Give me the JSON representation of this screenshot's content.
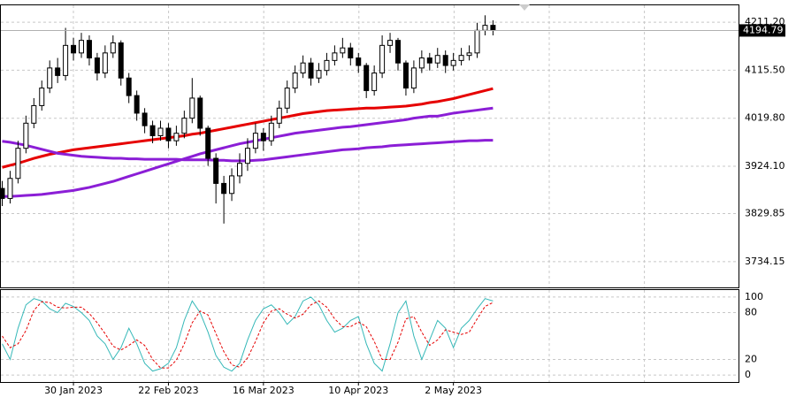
{
  "chart_data": [
    {
      "type": "candlestick",
      "open": [
        3880,
        3860,
        3900,
        3960,
        4010,
        4045,
        4080,
        4120,
        4105,
        4165,
        4150,
        4175,
        4140,
        4110,
        4150,
        4170,
        4100,
        4065,
        4030,
        4005,
        3985,
        4000,
        3975,
        3990,
        4020,
        4060,
        4000,
        3940,
        3890,
        3870,
        3905,
        3930,
        3960,
        3990,
        3975,
        4010,
        4040,
        4080,
        4110,
        4130,
        4100,
        4115,
        4135,
        4150,
        4160,
        4140,
        4125,
        4075,
        4110,
        4165,
        4175,
        4130,
        4080,
        4120,
        4140,
        4130,
        4145,
        4125,
        4135,
        4145,
        4150,
        4195,
        4205
      ],
      "high": [
        3895,
        3915,
        3975,
        4025,
        4060,
        4095,
        4135,
        4140,
        4200,
        4180,
        4190,
        4185,
        4150,
        4165,
        4185,
        4175,
        4110,
        4075,
        4040,
        4015,
        4015,
        4010,
        4005,
        4035,
        4100,
        4065,
        4005,
        3950,
        3905,
        3920,
        3950,
        3980,
        4010,
        4000,
        4025,
        4055,
        4095,
        4125,
        4145,
        4140,
        4130,
        4150,
        4165,
        4180,
        4170,
        4150,
        4130,
        4125,
        4185,
        4190,
        4180,
        4135,
        4135,
        4155,
        4150,
        4160,
        4155,
        4150,
        4160,
        4165,
        4210,
        4225,
        4215
      ],
      "low": [
        3845,
        3850,
        3890,
        3950,
        4000,
        4035,
        4070,
        4090,
        4095,
        4135,
        4140,
        4125,
        4095,
        4100,
        4140,
        4085,
        4050,
        4015,
        3990,
        3970,
        3975,
        3960,
        3965,
        3980,
        4010,
        3985,
        3925,
        3850,
        3810,
        3855,
        3890,
        3915,
        3950,
        3955,
        3965,
        4000,
        4030,
        4070,
        4100,
        4085,
        4090,
        4105,
        4125,
        4140,
        4125,
        4110,
        4060,
        4065,
        4100,
        4150,
        4115,
        4065,
        4070,
        4110,
        4115,
        4120,
        4110,
        4115,
        4125,
        4135,
        4140,
        4185,
        4185
      ],
      "close": [
        3860,
        3900,
        3960,
        4010,
        4045,
        4080,
        4120,
        4105,
        4165,
        4150,
        4175,
        4140,
        4110,
        4150,
        4170,
        4100,
        4065,
        4030,
        4005,
        3985,
        4000,
        3975,
        3990,
        4020,
        4060,
        4000,
        3940,
        3890,
        3870,
        3905,
        3930,
        3960,
        3990,
        3975,
        4010,
        4040,
        4080,
        4110,
        4130,
        4100,
        4115,
        4135,
        4150,
        4160,
        4140,
        4125,
        4075,
        4110,
        4165,
        4175,
        4130,
        4080,
        4120,
        4140,
        4130,
        4145,
        4125,
        4135,
        4145,
        4150,
        4195,
        4205,
        4194.79
      ],
      "up_color": "#ffffff",
      "down_color": "#000000",
      "series": [
        {
          "color": "#e60000",
          "values": [
            3922,
            3926,
            3930,
            3935,
            3940,
            3944,
            3948,
            3951,
            3954,
            3957,
            3959,
            3961,
            3963,
            3965,
            3967,
            3969,
            3971,
            3973,
            3975,
            3977,
            3979,
            3981,
            3983,
            3985,
            3988,
            3990,
            3993,
            3996,
            3999,
            4002,
            4005,
            4008,
            4011,
            4014,
            4017,
            4020,
            4023,
            4026,
            4029,
            4031,
            4033,
            4035,
            4036,
            4037,
            4038,
            4039,
            4040,
            4040,
            4041,
            4042,
            4043,
            4044,
            4046,
            4048,
            4051,
            4053,
            4056,
            4059,
            4063,
            4067,
            4071,
            4075,
            4079
          ]
        },
        {
          "color": "#8b1ed6",
          "values": [
            3864,
            3864,
            3865,
            3866,
            3867,
            3868,
            3870,
            3872,
            3874,
            3876,
            3879,
            3882,
            3886,
            3890,
            3894,
            3899,
            3904,
            3909,
            3914,
            3919,
            3924,
            3929,
            3934,
            3939,
            3944,
            3949,
            3953,
            3957,
            3961,
            3965,
            3969,
            3972,
            3975,
            3978,
            3981,
            3984,
            3987,
            3990,
            3992,
            3994,
            3996,
            3998,
            4000,
            4002,
            4003,
            4005,
            4007,
            4009,
            4011,
            4013,
            4015,
            4017,
            4020,
            4022,
            4024,
            4024,
            4027,
            4030,
            4032,
            4034,
            4036,
            4038,
            4040
          ]
        },
        {
          "color": "#8b1ed6",
          "values": [
            3974,
            3972,
            3969,
            3966,
            3962,
            3958,
            3954,
            3950,
            3948,
            3946,
            3944,
            3943,
            3942,
            3941,
            3940,
            3940,
            3939,
            3939,
            3938,
            3938,
            3938,
            3938,
            3938,
            3937,
            3937,
            3937,
            3937,
            3936,
            3936,
            3935,
            3935,
            3935,
            3936,
            3937,
            3939,
            3941,
            3943,
            3945,
            3947,
            3949,
            3951,
            3953,
            3955,
            3957,
            3958,
            3959,
            3961,
            3962,
            3963,
            3965,
            3966,
            3967,
            3968,
            3969,
            3970,
            3971,
            3972,
            3973,
            3974,
            3975,
            3975,
            3976,
            3976
          ]
        }
      ],
      "ylim": [
        3682.8,
        4244.9
      ],
      "yticks": [
        {
          "value": 4211.2,
          "label": "4211.20"
        },
        {
          "value": 4115.5,
          "label": "4115.50"
        },
        {
          "value": 4019.8,
          "label": "4019.80"
        },
        {
          "value": 3924.1,
          "label": "3924.10"
        },
        3829.85,
        3734.15
      ],
      "last_price": 4194.79,
      "grid": true
    },
    {
      "type": "line",
      "categories": [
        null,
        null,
        null,
        null,
        null,
        null,
        null,
        null,
        null,
        "30 Jan 2023",
        null,
        null,
        null,
        null,
        null,
        null,
        null,
        null,
        null,
        null,
        null,
        "22 Feb 2023",
        null,
        null,
        null,
        null,
        null,
        null,
        null,
        null,
        null,
        null,
        null,
        "16 Mar 2023",
        null,
        null,
        null,
        null,
        null,
        null,
        null,
        null,
        null,
        null,
        null,
        "10 Apr 2023",
        null,
        null,
        null,
        null,
        null,
        null,
        null,
        null,
        null,
        null,
        null,
        "2 May 2023",
        null,
        null,
        null,
        null,
        null
      ],
      "series": [
        {
          "color": "#35b8b8",
          "dashed": false,
          "values": [
            40,
            20,
            60,
            90,
            98,
            95,
            85,
            80,
            92,
            88,
            80,
            70,
            50,
            40,
            20,
            35,
            60,
            40,
            15,
            5,
            8,
            15,
            35,
            70,
            95,
            80,
            55,
            25,
            10,
            5,
            15,
            45,
            70,
            85,
            90,
            80,
            65,
            75,
            95,
            100,
            90,
            70,
            55,
            60,
            70,
            75,
            40,
            15,
            5,
            40,
            80,
            95,
            50,
            20,
            45,
            70,
            60,
            35,
            60,
            70,
            85,
            98,
            95
          ]
        },
        {
          "color": "#e60000",
          "dashed": true,
          "values": [
            50,
            35,
            40,
            57,
            83,
            94,
            93,
            87,
            86,
            87,
            87,
            79,
            67,
            53,
            37,
            32,
            38,
            45,
            38,
            20,
            9,
            9,
            19,
            40,
            67,
            82,
            77,
            53,
            30,
            13,
            10,
            22,
            43,
            67,
            82,
            85,
            78,
            73,
            78,
            90,
            95,
            87,
            72,
            62,
            62,
            68,
            62,
            43,
            20,
            20,
            42,
            72,
            75,
            55,
            38,
            45,
            58,
            55,
            52,
            55,
            72,
            88,
            93
          ]
        }
      ],
      "ylim": [
        -9,
        109
      ],
      "yticks": [
        100,
        80,
        20,
        0
      ],
      "grid": true
    }
  ]
}
